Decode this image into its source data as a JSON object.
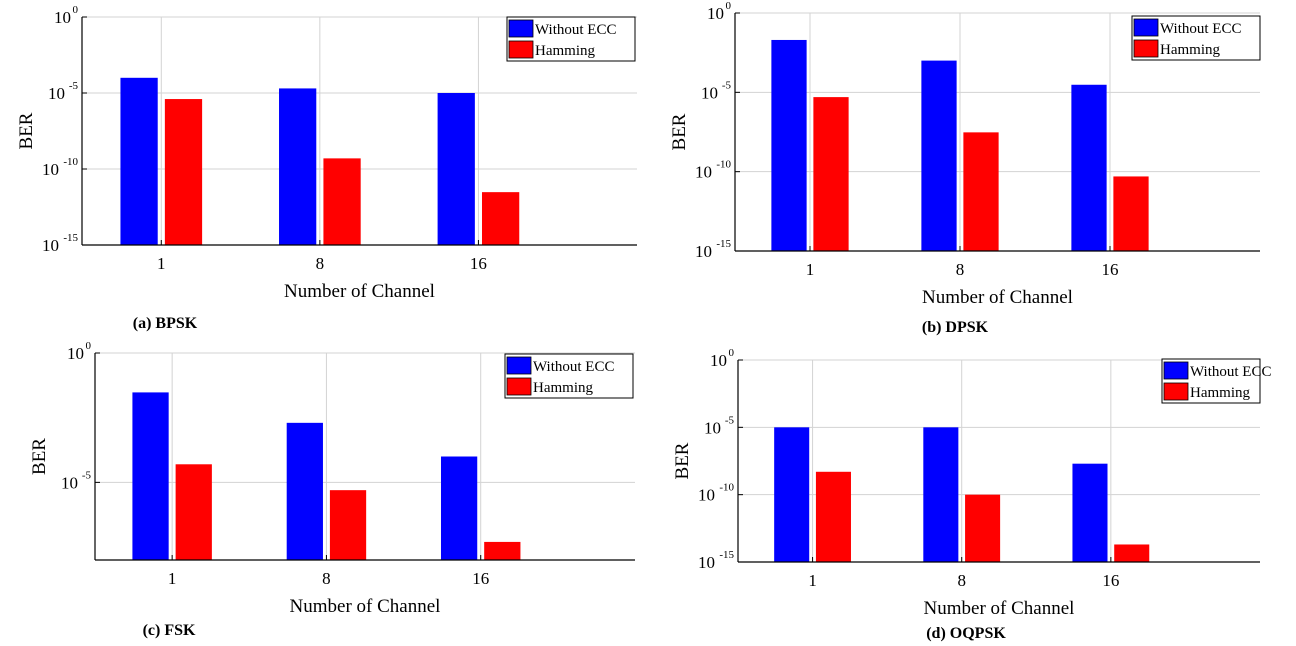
{
  "colors": {
    "without_ecc": "#0000ff",
    "hamming": "#ff0000",
    "grid": "#d3d3d3",
    "axis": "#000000"
  },
  "chart_data": [
    {
      "type": "bar",
      "caption": "(a) BPSK",
      "xlabel": "Number of Channel",
      "ylabel": "BER",
      "scale": "log",
      "ylim": [
        1e-15,
        1
      ],
      "yticks": [
        {
          "exp": 0,
          "label": "10",
          "sup": "0"
        },
        {
          "exp": -5,
          "label": "10",
          "sup": "-5"
        },
        {
          "exp": -10,
          "label": "10",
          "sup": "-10"
        },
        {
          "exp": -15,
          "label": "10",
          "sup": "-15"
        }
      ],
      "categories": [
        "1",
        "8",
        "16"
      ],
      "series": [
        {
          "name": "Without ECC",
          "values": [
            0.0001,
            2e-05,
            1e-05
          ]
        },
        {
          "name": "Hamming",
          "values": [
            4e-06,
            5e-10,
            3e-12
          ]
        }
      ],
      "grid": true,
      "legend": "top-right"
    },
    {
      "type": "bar",
      "caption": "(b) DPSK",
      "xlabel": "Number of Channel",
      "ylabel": "BER",
      "scale": "log",
      "ylim": [
        1e-15,
        1
      ],
      "yticks": [
        {
          "exp": 0,
          "label": "10",
          "sup": "0"
        },
        {
          "exp": -5,
          "label": "10",
          "sup": "-5"
        },
        {
          "exp": -10,
          "label": "10",
          "sup": "-10"
        },
        {
          "exp": -15,
          "label": "10",
          "sup": "-15"
        }
      ],
      "categories": [
        "1",
        "8",
        "16"
      ],
      "series": [
        {
          "name": "Without ECC",
          "values": [
            0.02,
            0.001,
            3e-05
          ]
        },
        {
          "name": "Hamming",
          "values": [
            5e-06,
            3e-08,
            5e-11
          ]
        }
      ],
      "grid": true,
      "legend": "top-right"
    },
    {
      "type": "bar",
      "caption": "(c) FSK",
      "xlabel": "Number of Channel",
      "ylabel": "BER",
      "scale": "log",
      "ylim": [
        1e-08,
        1
      ],
      "yticks": [
        {
          "exp": 0,
          "label": "10",
          "sup": "0"
        },
        {
          "exp": -5,
          "label": "10",
          "sup": "-5"
        }
      ],
      "categories": [
        "1",
        "8",
        "16"
      ],
      "series": [
        {
          "name": "Without ECC",
          "values": [
            0.03,
            0.002,
            0.0001
          ]
        },
        {
          "name": "Hamming",
          "values": [
            5e-05,
            5e-06,
            5e-08
          ]
        }
      ],
      "grid": true,
      "legend": "top-right"
    },
    {
      "type": "bar",
      "caption": "(d) OQPSK",
      "xlabel": "Number of Channel",
      "ylabel": "BER",
      "scale": "log",
      "ylim": [
        1e-15,
        1
      ],
      "yticks": [
        {
          "exp": 0,
          "label": "10",
          "sup": "0"
        },
        {
          "exp": -5,
          "label": "10",
          "sup": "-5"
        },
        {
          "exp": -10,
          "label": "10",
          "sup": "-10"
        },
        {
          "exp": -15,
          "label": "10",
          "sup": "-15"
        }
      ],
      "categories": [
        "1",
        "8",
        "16"
      ],
      "series": [
        {
          "name": "Without ECC",
          "values": [
            1e-05,
            1e-05,
            2e-08
          ]
        },
        {
          "name": "Hamming",
          "values": [
            5e-09,
            1e-10,
            2e-14
          ]
        }
      ],
      "grid": true,
      "legend": "top-right"
    }
  ]
}
